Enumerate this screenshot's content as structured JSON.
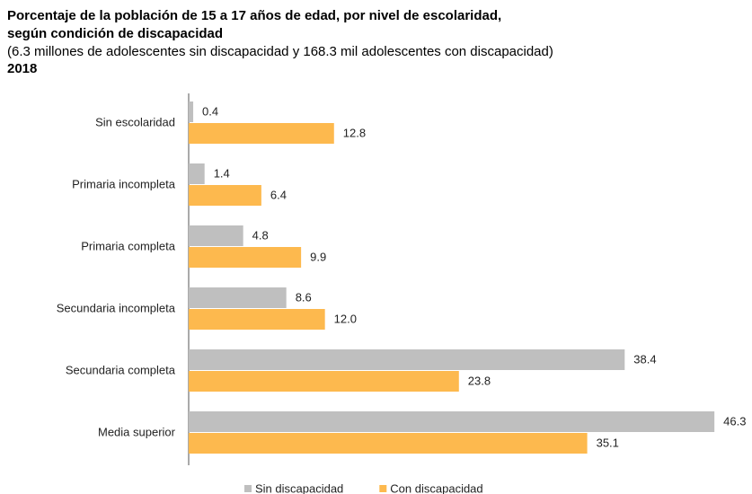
{
  "chart_data": {
    "type": "hbar",
    "title": "Porcentaje de la población de 15 a 17 años de edad, por nivel de escolaridad,\nsegún condición de discapacidad",
    "subtitle": "(6.3 millones de adolescentes sin discapacidad y 168.3 mil adolescentes con discapacidad)",
    "year": "2018",
    "categories": [
      "Sin escolaridad",
      "Primaria incompleta",
      "Primaria completa",
      "Secundaria incompleta",
      "Secundaria completa",
      "Media superior"
    ],
    "series": [
      {
        "name": "Sin discapacidad",
        "color": "#bfbfbf",
        "values": [
          0.4,
          1.4,
          4.8,
          8.6,
          38.4,
          46.3
        ],
        "value_labels": [
          "0.4",
          "1.4",
          "4.8",
          "8.6",
          "38.4",
          "46.3"
        ]
      },
      {
        "name": "Con discapacidad",
        "color": "#fdb94e",
        "values": [
          12.8,
          6.4,
          9.9,
          12,
          23.8,
          35.1
        ],
        "value_labels": [
          "12.8",
          "6.4",
          "9.9",
          "12.0",
          "23.8",
          "35.1"
        ]
      }
    ],
    "xlim": [
      0,
      47
    ]
  }
}
